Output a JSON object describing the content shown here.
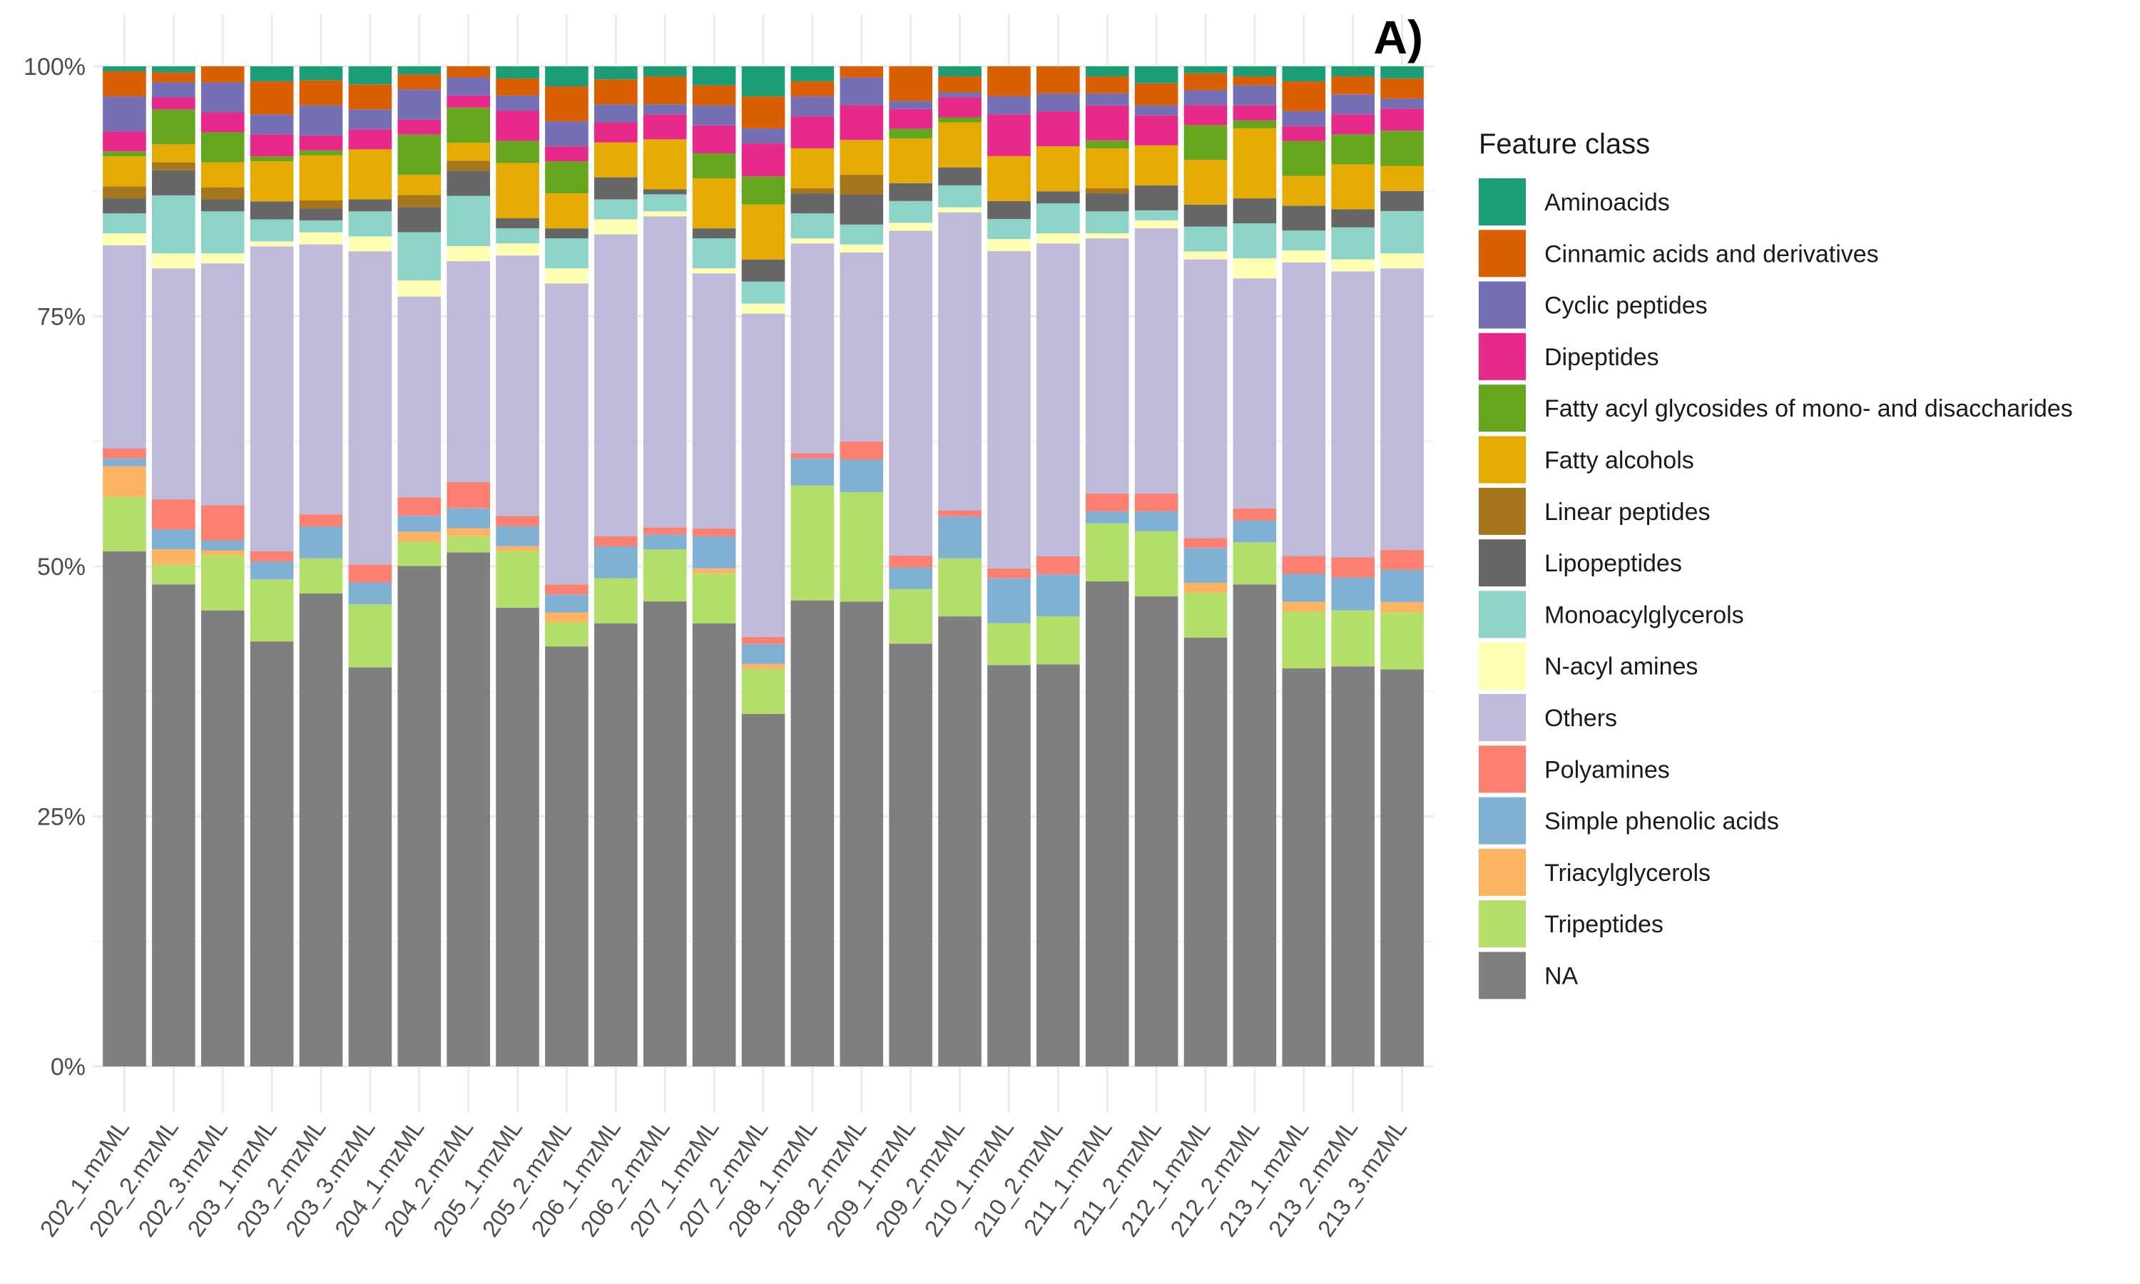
{
  "panel_tag": "A)",
  "chart_data": {
    "type": "bar",
    "stacked": true,
    "normalized": true,
    "title": "",
    "xlabel": "",
    "ylabel": "",
    "ylim": [
      0,
      1
    ],
    "y_ticks": [
      "0%",
      "25%",
      "50%",
      "75%",
      "100%"
    ],
    "grid": true,
    "legend": {
      "title": "Feature class",
      "position": "right"
    },
    "categories": [
      "202_1.mzML",
      "202_2.mzML",
      "202_3.mzML",
      "203_1.mzML",
      "203_2.mzML",
      "203_3.mzML",
      "204_1.mzML",
      "204_2.mzML",
      "205_1.mzML",
      "205_2.mzML",
      "206_1.mzML",
      "206_2.mzML",
      "207_1.mzML",
      "207_2.mzML",
      "208_1.mzML",
      "208_2.mzML",
      "209_1.mzML",
      "209_2.mzML",
      "210_1.mzML",
      "210_2.mzML",
      "211_1.mzML",
      "211_2.mzML",
      "212_1.mzML",
      "212_2.mzML",
      "213_1.mzML",
      "213_2.mzML",
      "213_3.mzML"
    ],
    "series": [
      {
        "name": "NA",
        "color": "#7f7f7f",
        "values": [
          0.515,
          0.482,
          0.456,
          0.425,
          0.473,
          0.399,
          0.498,
          0.512,
          0.456,
          0.42,
          0.443,
          0.465,
          0.443,
          0.352,
          0.466,
          0.467,
          0.427,
          0.45,
          0.402,
          0.402,
          0.485,
          0.47,
          0.431,
          0.482,
          0.4,
          0.4,
          0.395
        ]
      },
      {
        "name": "Tripeptides",
        "color": "#b3de69",
        "values": [
          0.055,
          0.02,
          0.055,
          0.062,
          0.035,
          0.063,
          0.024,
          0.016,
          0.056,
          0.024,
          0.045,
          0.052,
          0.05,
          0.045,
          0.115,
          0.11,
          0.055,
          0.058,
          0.042,
          0.048,
          0.058,
          0.065,
          0.045,
          0.042,
          0.057,
          0.056,
          0.057
        ]
      },
      {
        "name": "Triacylglycerols",
        "color": "#fdb462",
        "values": [
          0.03,
          0.015,
          0.005,
          0.0,
          0.0,
          0.0,
          0.01,
          0.008,
          0.005,
          0.01,
          0.0,
          0.0,
          0.005,
          0.005,
          0.0,
          0.0,
          0.0,
          0.0,
          0.0,
          0.0,
          0.0,
          0.0,
          0.01,
          0.0,
          0.01,
          0.0,
          0.01
        ]
      },
      {
        "name": "Simple phenolic acids",
        "color": "#80b1d3",
        "values": [
          0.008,
          0.02,
          0.01,
          0.018,
          0.032,
          0.022,
          0.016,
          0.02,
          0.02,
          0.018,
          0.032,
          0.015,
          0.032,
          0.02,
          0.027,
          0.033,
          0.022,
          0.042,
          0.045,
          0.042,
          0.012,
          0.02,
          0.035,
          0.022,
          0.028,
          0.033,
          0.032
        ]
      },
      {
        "name": "Polyamines",
        "color": "#fb8072",
        "values": [
          0.01,
          0.03,
          0.035,
          0.01,
          0.012,
          0.018,
          0.018,
          0.026,
          0.01,
          0.01,
          0.01,
          0.007,
          0.008,
          0.007,
          0.005,
          0.018,
          0.012,
          0.006,
          0.01,
          0.018,
          0.018,
          0.018,
          0.01,
          0.012,
          0.018,
          0.02,
          0.02
        ]
      },
      {
        "name": "Others",
        "color": "#bebada",
        "values": [
          0.203,
          0.231,
          0.242,
          0.305,
          0.27,
          0.313,
          0.2,
          0.22,
          0.259,
          0.301,
          0.302,
          0.311,
          0.255,
          0.323,
          0.21,
          0.19,
          0.328,
          0.298,
          0.318,
          0.313,
          0.255,
          0.265,
          0.28,
          0.23,
          0.295,
          0.286,
          0.28
        ]
      },
      {
        "name": "N-acyl amines",
        "color": "#ffffb3",
        "values": [
          0.012,
          0.015,
          0.01,
          0.005,
          0.012,
          0.015,
          0.016,
          0.015,
          0.012,
          0.015,
          0.015,
          0.005,
          0.005,
          0.01,
          0.005,
          0.008,
          0.008,
          0.005,
          0.012,
          0.01,
          0.005,
          0.008,
          0.008,
          0.02,
          0.012,
          0.012,
          0.015
        ]
      },
      {
        "name": "Monoacylglycerols",
        "color": "#8dd3c7",
        "values": [
          0.02,
          0.058,
          0.042,
          0.022,
          0.012,
          0.025,
          0.048,
          0.05,
          0.015,
          0.03,
          0.02,
          0.017,
          0.03,
          0.022,
          0.025,
          0.02,
          0.022,
          0.022,
          0.02,
          0.03,
          0.022,
          0.01,
          0.025,
          0.035,
          0.02,
          0.032,
          0.042
        ]
      },
      {
        "name": "Lipopeptides",
        "color": "#666666",
        "values": [
          0.015,
          0.025,
          0.012,
          0.018,
          0.012,
          0.012,
          0.025,
          0.025,
          0.01,
          0.01,
          0.022,
          0.005,
          0.01,
          0.022,
          0.02,
          0.03,
          0.018,
          0.018,
          0.018,
          0.012,
          0.018,
          0.025,
          0.022,
          0.025,
          0.025,
          0.018,
          0.02
        ]
      },
      {
        "name": "Linear peptides",
        "color": "#a6761d",
        "values": [
          0.012,
          0.008,
          0.012,
          0.0,
          0.008,
          0.0,
          0.012,
          0.01,
          0.0,
          0.0,
          0.0,
          0.0,
          0.0,
          0.0,
          0.005,
          0.02,
          0.0,
          0.0,
          0.0,
          0.0,
          0.005,
          0.0,
          0.0,
          0.0,
          0.0,
          0.0,
          0.0
        ]
      },
      {
        "name": "Fatty alcohols",
        "color": "#e6ab02",
        "values": [
          0.03,
          0.018,
          0.025,
          0.04,
          0.045,
          0.05,
          0.02,
          0.018,
          0.055,
          0.035,
          0.035,
          0.05,
          0.05,
          0.055,
          0.04,
          0.035,
          0.045,
          0.045,
          0.045,
          0.045,
          0.04,
          0.04,
          0.045,
          0.07,
          0.03,
          0.045,
          0.025
        ]
      },
      {
        "name": "Fatty acyl glycosides of mono- and disaccharides",
        "color": "#66a61e",
        "values": [
          0.005,
          0.035,
          0.03,
          0.005,
          0.005,
          0.0,
          0.04,
          0.035,
          0.022,
          0.032,
          0.0,
          0.0,
          0.025,
          0.028,
          0.0,
          0.0,
          0.01,
          0.005,
          0.0,
          0.0,
          0.008,
          0.0,
          0.035,
          0.008,
          0.035,
          0.03,
          0.035
        ]
      },
      {
        "name": "Dipeptides",
        "color": "#e7298a",
        "values": [
          0.02,
          0.012,
          0.02,
          0.022,
          0.015,
          0.02,
          0.015,
          0.012,
          0.03,
          0.015,
          0.02,
          0.025,
          0.028,
          0.033,
          0.032,
          0.035,
          0.02,
          0.02,
          0.042,
          0.035,
          0.035,
          0.03,
          0.02,
          0.015,
          0.015,
          0.02,
          0.022
        ]
      },
      {
        "name": "Cyclic peptides",
        "color": "#7570b3",
        "values": [
          0.035,
          0.015,
          0.03,
          0.02,
          0.03,
          0.02,
          0.03,
          0.018,
          0.015,
          0.025,
          0.018,
          0.01,
          0.02,
          0.015,
          0.02,
          0.028,
          0.008,
          0.005,
          0.018,
          0.018,
          0.012,
          0.01,
          0.015,
          0.02,
          0.015,
          0.02,
          0.01
        ]
      },
      {
        "name": "Cinnamic acids and derivatives",
        "color": "#d95f02",
        "values": [
          0.025,
          0.01,
          0.016,
          0.033,
          0.025,
          0.025,
          0.015,
          0.011,
          0.017,
          0.035,
          0.025,
          0.028,
          0.02,
          0.032,
          0.015,
          0.011,
          0.035,
          0.016,
          0.03,
          0.027,
          0.017,
          0.022,
          0.017,
          0.009,
          0.03,
          0.018,
          0.02
        ]
      },
      {
        "name": "Aminoacids",
        "color": "#1b9e77",
        "values": [
          0.005,
          0.006,
          0.0,
          0.015,
          0.014,
          0.018,
          0.008,
          0.0,
          0.012,
          0.02,
          0.013,
          0.01,
          0.019,
          0.03,
          0.015,
          0.0,
          0.0,
          0.01,
          0.0,
          0.0,
          0.01,
          0.017,
          0.007,
          0.01,
          0.015,
          0.01,
          0.012
        ]
      }
    ],
    "legend_order": [
      "Aminoacids",
      "Cinnamic acids and derivatives",
      "Cyclic peptides",
      "Dipeptides",
      "Fatty acyl glycosides of mono- and disaccharides",
      "Fatty alcohols",
      "Linear peptides",
      "Lipopeptides",
      "Monoacylglycerols",
      "N-acyl amines",
      "Others",
      "Polyamines",
      "Simple phenolic acids",
      "Triacylglycerols",
      "Tripeptides",
      "NA"
    ]
  }
}
